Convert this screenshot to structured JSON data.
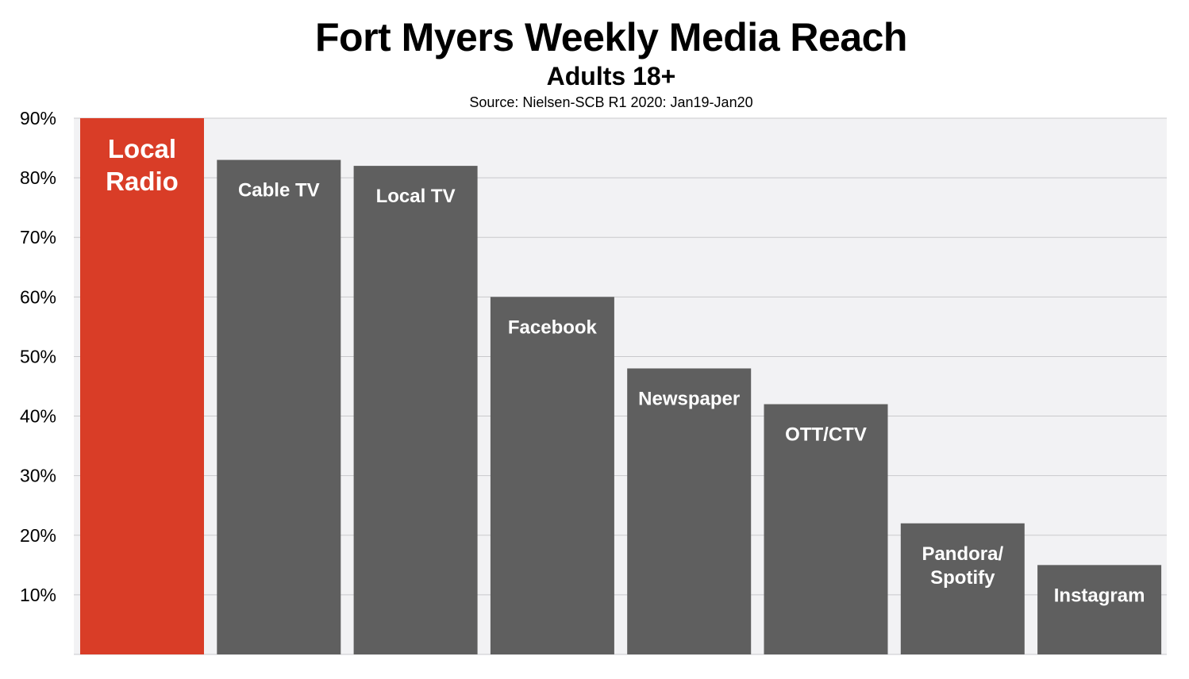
{
  "chart_data": {
    "type": "bar",
    "title": "Fort Myers Weekly Media Reach",
    "subtitle": "Adults 18+",
    "source": "Source: Nielsen-SCB R1 2020: Jan19-Jan20",
    "categories": [
      [
        "Local",
        "Radio"
      ],
      [
        "Cable TV"
      ],
      [
        "Local TV"
      ],
      [
        "Facebook"
      ],
      [
        "Newspaper"
      ],
      [
        "OTT/CTV"
      ],
      [
        "Pandora/",
        "Spotify"
      ],
      [
        "Instagram"
      ]
    ],
    "values": [
      90,
      83,
      82,
      60,
      48,
      42,
      22,
      15
    ],
    "ylim": [
      0,
      90
    ],
    "yticks": [
      {
        "value": 10,
        "label": "10%"
      },
      {
        "value": 20,
        "label": "20%"
      },
      {
        "value": 30,
        "label": "30%"
      },
      {
        "value": 40,
        "label": "40%"
      },
      {
        "value": 50,
        "label": "50%"
      },
      {
        "value": 60,
        "label": "60%"
      },
      {
        "value": 70,
        "label": "70%"
      },
      {
        "value": 80,
        "label": "80%"
      },
      {
        "value": 90,
        "label": "90%"
      }
    ],
    "grid": true,
    "colors": {
      "highlight": "#d93d27",
      "bar": "#5f5f5f",
      "plot_bg": "#f2f2f4",
      "grid": "#c9c9cc"
    }
  }
}
